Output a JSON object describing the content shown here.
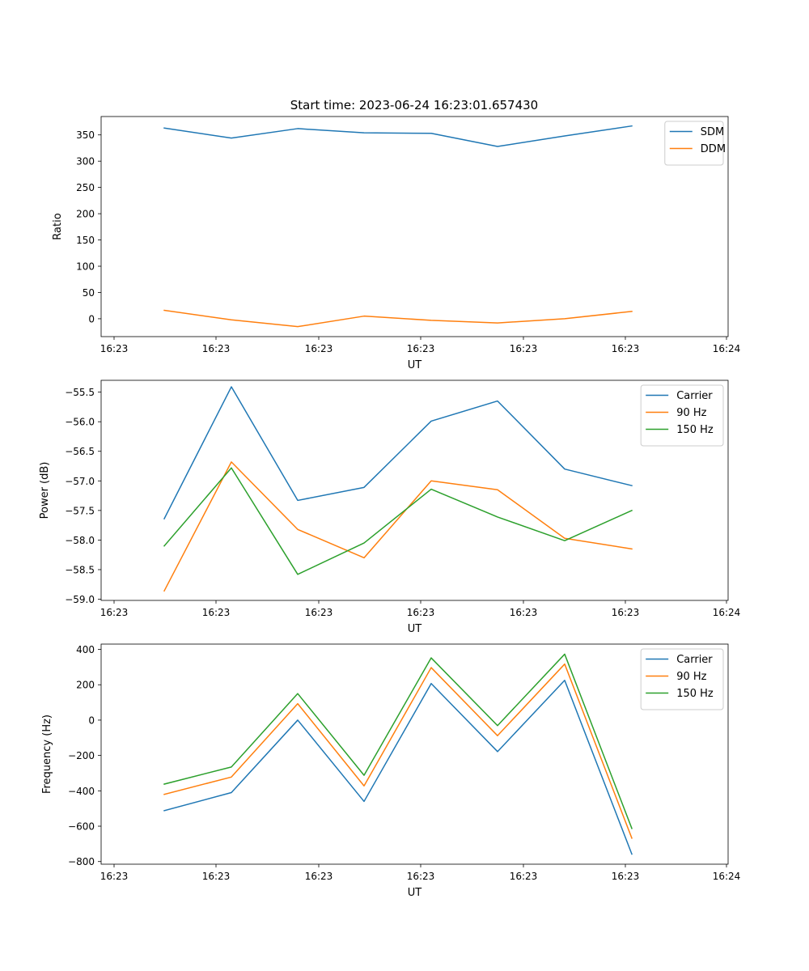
{
  "title": "Start time: 2023-06-24 16:23:01.657430",
  "colors": {
    "blue": "#1f77b4",
    "orange": "#ff7f0e",
    "green": "#2ca02c"
  },
  "chart_data": [
    {
      "type": "line",
      "xlabel": "UT",
      "ylabel": "Ratio",
      "x_tick_labels": [
        "16:23",
        "16:23",
        "16:23",
        "16:23",
        "16:23",
        "16:23",
        "16:24"
      ],
      "y_ticks": [
        0,
        50,
        100,
        150,
        200,
        250,
        300,
        350
      ],
      "ylim": [
        -34,
        385
      ],
      "grid": false,
      "legend_position": "top-right",
      "series": [
        {
          "name": "SDM",
          "color": "#1f77b4",
          "values": [
            363,
            344,
            362,
            354,
            353,
            328,
            348,
            367
          ]
        },
        {
          "name": "DDM",
          "color": "#ff7f0e",
          "values": [
            16,
            -2,
            -15,
            5,
            -3,
            -8,
            0,
            14
          ]
        }
      ]
    },
    {
      "type": "line",
      "xlabel": "UT",
      "ylabel": "Power (dB)",
      "x_tick_labels": [
        "16:23",
        "16:23",
        "16:23",
        "16:23",
        "16:23",
        "16:23",
        "16:24"
      ],
      "y_ticks": [
        -59.0,
        -58.5,
        -58.0,
        -57.5,
        -57.0,
        -56.5,
        -56.0,
        -55.5
      ],
      "y_tick_labels": [
        "−59.0",
        "−58.5",
        "−58.0",
        "−57.5",
        "−57.0",
        "−56.5",
        "−56.0",
        "−55.5"
      ],
      "ylim": [
        -59.02,
        -55.3
      ],
      "grid": false,
      "legend_position": "top-right",
      "series": [
        {
          "name": "Carrier",
          "color": "#1f77b4",
          "values": [
            -57.64,
            -55.41,
            -57.33,
            -57.11,
            -55.99,
            -55.65,
            -56.8,
            -57.08
          ]
        },
        {
          "name": "90 Hz",
          "color": "#ff7f0e",
          "values": [
            -58.86,
            -56.68,
            -57.82,
            -58.3,
            -57.0,
            -57.15,
            -57.97,
            -58.15
          ]
        },
        {
          "name": "150 Hz",
          "color": "#2ca02c",
          "values": [
            -58.1,
            -56.78,
            -58.58,
            -58.05,
            -57.14,
            -57.61,
            -58.01,
            -57.5
          ]
        }
      ]
    },
    {
      "type": "line",
      "xlabel": "UT",
      "ylabel": "Frequency (Hz)",
      "x_tick_labels": [
        "16:23",
        "16:23",
        "16:23",
        "16:23",
        "16:23",
        "16:23",
        "16:24"
      ],
      "y_ticks": [
        -800,
        -600,
        -400,
        -200,
        0,
        200,
        400
      ],
      "y_tick_labels": [
        "−800",
        "−600",
        "−400",
        "−200",
        "0",
        "200",
        "400"
      ],
      "ylim": [
        -815,
        430
      ],
      "grid": false,
      "legend_position": "top-right",
      "series": [
        {
          "name": "Carrier",
          "color": "#1f77b4",
          "values": [
            -512,
            -410,
            0,
            -460,
            207,
            -178,
            225,
            -758
          ]
        },
        {
          "name": "90 Hz",
          "color": "#ff7f0e",
          "values": [
            -420,
            -322,
            93,
            -372,
            297,
            -88,
            317,
            -668
          ]
        },
        {
          "name": "150 Hz",
          "color": "#2ca02c",
          "values": [
            -362,
            -265,
            150,
            -312,
            352,
            -31,
            373,
            -613
          ]
        }
      ]
    }
  ]
}
